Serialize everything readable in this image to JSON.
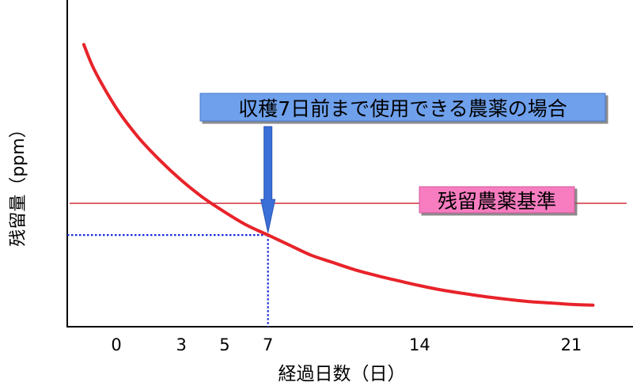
{
  "chart_data": {
    "type": "line",
    "xlabel": "経過日数（日）",
    "ylabel": "残留量（ppm）",
    "x_ticks": [
      0,
      3,
      5,
      7,
      14,
      21
    ],
    "xlim": [
      -2.2,
      23
    ],
    "ylim": [
      0,
      10
    ],
    "y_ticks_shown": false,
    "series": [
      {
        "x": [
          -1.5,
          -1,
          0,
          1,
          2,
          3,
          4,
          5,
          6,
          7,
          8,
          9,
          10,
          11,
          12,
          13,
          14,
          15,
          16,
          17,
          18,
          19,
          20,
          21,
          22
        ],
        "y": [
          9.5,
          8.6,
          7.3,
          6.3,
          5.5,
          4.8,
          4.2,
          3.7,
          3.25,
          2.9,
          2.55,
          2.2,
          1.95,
          1.7,
          1.5,
          1.32,
          1.15,
          1.0,
          0.88,
          0.77,
          0.68,
          0.6,
          0.55,
          0.5,
          0.47
        ]
      }
    ],
    "reference_line": {
      "y": 4.0,
      "label": "残留農薬基準"
    },
    "marker": {
      "x": 7,
      "y": 2.9
    },
    "callout": "収穫7日前まで使用できる農薬の場合"
  },
  "colors": {
    "curve": "#e8232a",
    "reference_line": "#d0303a",
    "dotted_guides": "#1a2bd8",
    "arrow": "#3b6fd8",
    "callout_bg": "#6ea0ec",
    "label_bg": "#f77cc0",
    "axis": "#000000"
  }
}
